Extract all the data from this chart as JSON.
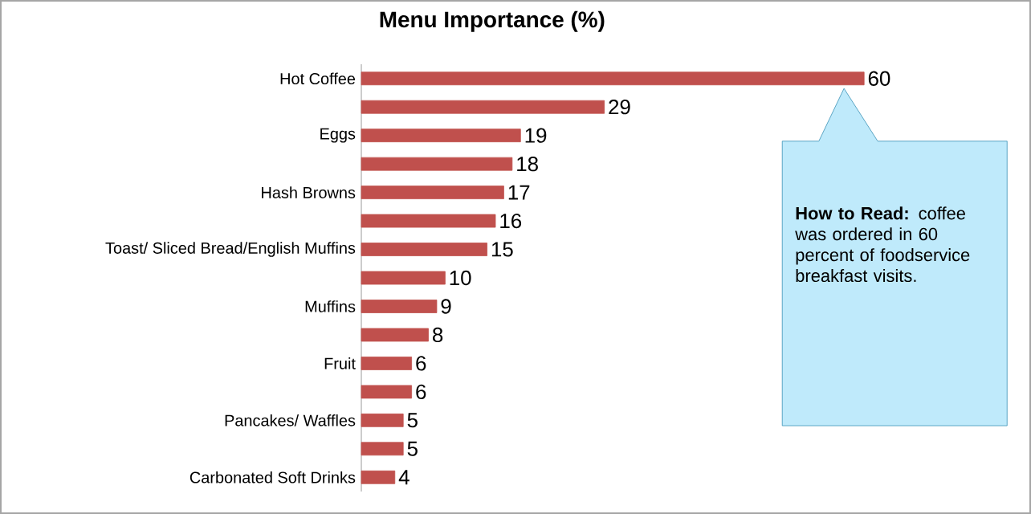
{
  "chart_data": {
    "type": "bar",
    "orientation": "horizontal",
    "title": "Menu Importance (%)",
    "categories": [
      "Hot Coffee",
      null,
      "Eggs",
      null,
      "Hash Browns",
      null,
      "Toast/ Sliced Bread/English Muffins",
      null,
      "Muffins",
      null,
      "Fruit",
      null,
      "Pancakes/ Waffles",
      null,
      "Carbonated Soft Drinks"
    ],
    "values": [
      60,
      29,
      19,
      18,
      17,
      16,
      15,
      10,
      9,
      8,
      6,
      6,
      5,
      5,
      4
    ],
    "color": "#c0504d",
    "data_labels": true,
    "annotations": [
      "**How to Read:** coffee was ordered in 60 percent of foodservice breakfast visits."
    ]
  }
}
